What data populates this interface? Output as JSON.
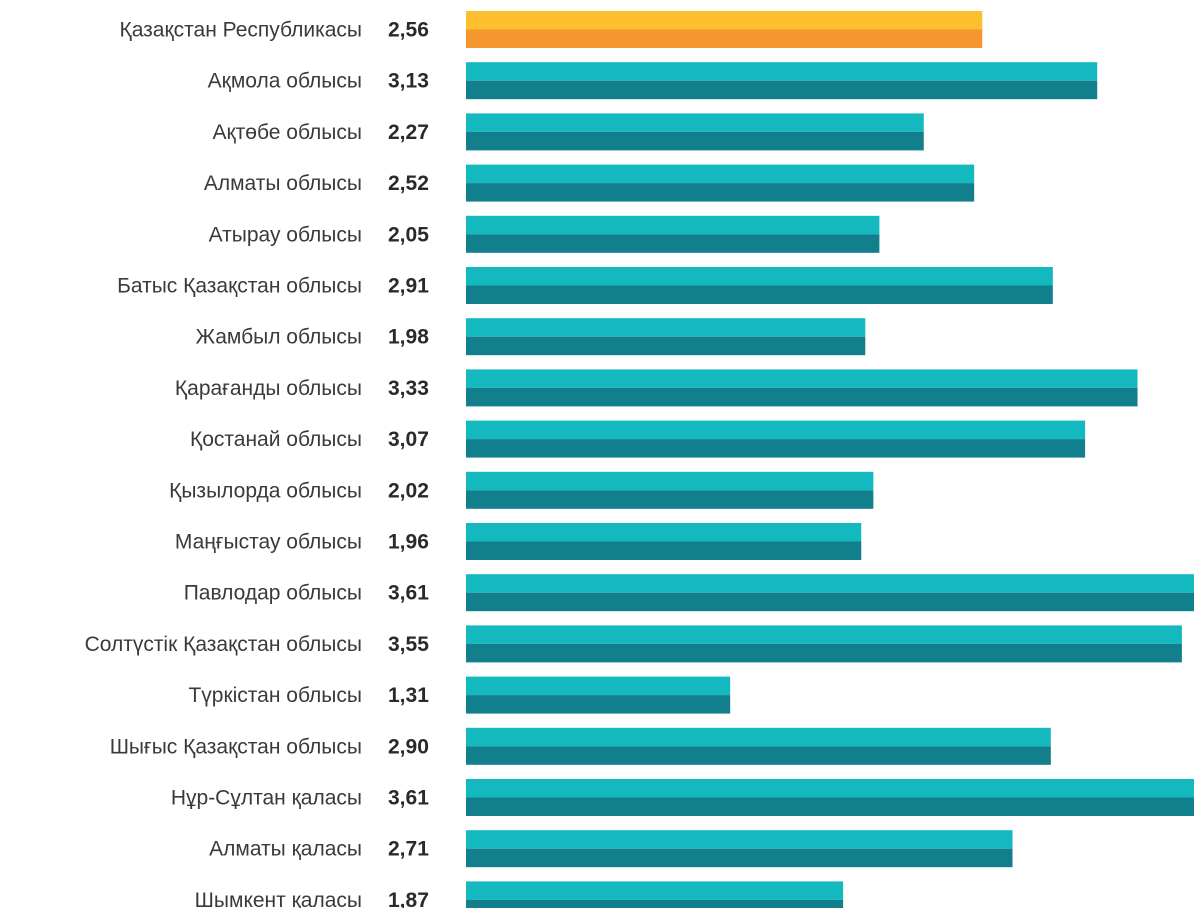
{
  "chart_data": {
    "type": "bar",
    "orientation": "horizontal",
    "categories": [
      "Қазақстан Республикасы",
      "Ақмола облысы",
      "Ақтөбе облысы",
      "Алматы облысы",
      "Атырау облысы",
      "Батыс Қазақстан облысы",
      "Жамбыл облысы",
      "Қарағанды облысы",
      "Қостанай облысы",
      "Қызылорда облысы",
      "Маңғыстау облысы",
      "Павлодар облысы",
      "Солтүстік Қазақстан облысы",
      "Түркістан облысы",
      "Шығыс Қазақстан облысы",
      "Нұр-Сұлтан қаласы",
      "Алматы қаласы",
      "Шымкент қаласы"
    ],
    "values": [
      2.56,
      3.13,
      2.27,
      2.52,
      2.05,
      2.91,
      1.98,
      3.33,
      3.07,
      2.02,
      1.96,
      3.61,
      3.55,
      1.31,
      2.9,
      3.61,
      2.71,
      1.87
    ],
    "value_labels": [
      "2,56",
      "3,13",
      "2,27",
      "2,52",
      "2,05",
      "2,91",
      "1,98",
      "3,33",
      "3,07",
      "2,02",
      "1,96",
      "3,61",
      "3,55",
      "1,31",
      "2,90",
      "3,61",
      "2,71",
      "1,87"
    ],
    "highlight_index": 0,
    "xlim": [
      0,
      3.61
    ],
    "grid": false,
    "legend": "none",
    "colors": {
      "bar_top": "#14b9bf",
      "bar_bottom": "#12808c",
      "highlight_top": "#fdbf2d",
      "highlight_bottom": "#f6962f",
      "category_text": "#3a3a3a",
      "value_text": "#2a2a2a"
    }
  }
}
